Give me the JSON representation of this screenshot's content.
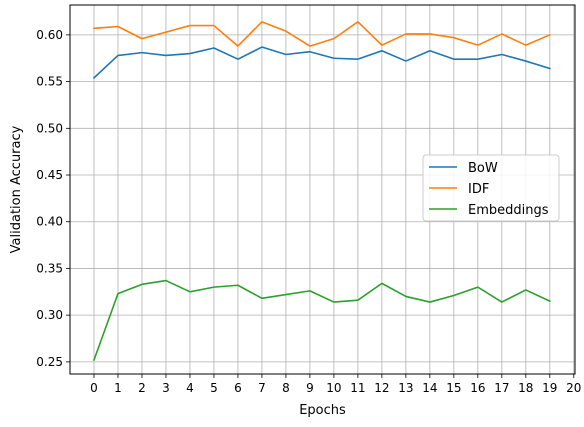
{
  "chart_data": {
    "type": "line",
    "xlabel": "Epochs",
    "ylabel": "Validation Accuracy",
    "x": [
      0,
      1,
      2,
      3,
      4,
      5,
      6,
      7,
      8,
      9,
      10,
      11,
      12,
      13,
      14,
      15,
      16,
      17,
      18,
      19
    ],
    "xticks": [
      0,
      1,
      2,
      3,
      4,
      5,
      6,
      7,
      8,
      9,
      10,
      11,
      12,
      13,
      14,
      15,
      16,
      17,
      18,
      19,
      20
    ],
    "yticks": [
      0.25,
      0.3,
      0.35,
      0.4,
      0.45,
      0.5,
      0.55,
      0.6
    ],
    "ytick_labels": [
      "0.25",
      "0.30",
      "0.35",
      "0.40",
      "0.45",
      "0.50",
      "0.55",
      "0.60"
    ],
    "xlim": [
      -1,
      20.05
    ],
    "ylim": [
      0.237,
      0.632
    ],
    "grid": true,
    "legend_position": "center-right",
    "series": [
      {
        "name": "BoW",
        "color": "#1f77b4",
        "values": [
          0.554,
          0.578,
          0.581,
          0.578,
          0.58,
          0.586,
          0.574,
          0.587,
          0.579,
          0.582,
          0.575,
          0.574,
          0.583,
          0.572,
          0.583,
          0.574,
          0.574,
          0.579,
          0.572,
          0.564
        ]
      },
      {
        "name": "IDF",
        "color": "#ff7f0e",
        "values": [
          0.607,
          0.609,
          0.596,
          0.603,
          0.61,
          0.61,
          0.588,
          0.614,
          0.604,
          0.588,
          0.596,
          0.614,
          0.589,
          0.601,
          0.601,
          0.597,
          0.589,
          0.601,
          0.589,
          0.6
        ]
      },
      {
        "name": "Embeddings",
        "color": "#2ca02c",
        "values": [
          0.252,
          0.323,
          0.333,
          0.337,
          0.325,
          0.33,
          0.332,
          0.318,
          0.322,
          0.326,
          0.314,
          0.316,
          0.334,
          0.32,
          0.314,
          0.321,
          0.33,
          0.314,
          0.327,
          0.315
        ]
      }
    ]
  }
}
